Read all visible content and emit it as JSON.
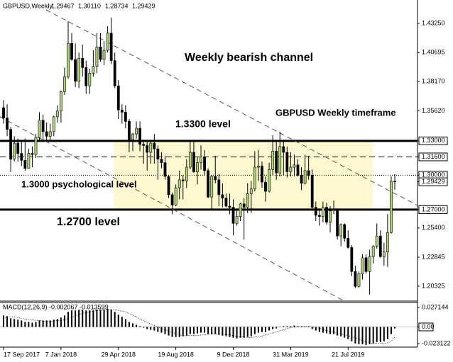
{
  "chart_data": {
    "type": "candlestick",
    "symbol": "GBPUSD,Weekly",
    "header_values": [
      "1.29467",
      "1.30110",
      "1.28734",
      "1.29429"
    ],
    "annotations": [
      "Weekly bearish channel",
      "GBPUSD Weekly timeframe",
      "1.3300 level",
      "1.3000 psychological level",
      "1.2700 level"
    ],
    "bull_color": "#a8d86e",
    "bear_color": "#000000",
    "categories": [
      "17 Sep 2017",
      null,
      null,
      null,
      null,
      null,
      null,
      null,
      null,
      null,
      null,
      null,
      null,
      null,
      null,
      null,
      "7 Jan 2018",
      null,
      null,
      null,
      null,
      null,
      null,
      null,
      null,
      null,
      null,
      null,
      null,
      null,
      null,
      null,
      "29 Apr 2018",
      null,
      null,
      null,
      null,
      null,
      null,
      null,
      null,
      null,
      null,
      null,
      null,
      null,
      null,
      null,
      "19 Aug 2018",
      null,
      null,
      null,
      null,
      null,
      null,
      null,
      null,
      null,
      null,
      null,
      null,
      null,
      null,
      null,
      "9 Dec 2018",
      null,
      null,
      null,
      null,
      null,
      null,
      null,
      null,
      null,
      null,
      null,
      null,
      null,
      null,
      null,
      "31 Mar 2019",
      null,
      null,
      null,
      null,
      null,
      null,
      null,
      null,
      null,
      null,
      null,
      null,
      null,
      null,
      null,
      "21 Jul 2019",
      null,
      null,
      null,
      null,
      null,
      null,
      null,
      null,
      null,
      null,
      null,
      null,
      null
    ],
    "ohlc": [
      [
        1.359,
        1.3657,
        1.345,
        1.35
      ],
      [
        1.35,
        1.362,
        1.334,
        1.34
      ],
      [
        1.34,
        1.342,
        1.3027,
        1.314
      ],
      [
        1.314,
        1.334,
        1.312,
        1.328
      ],
      [
        1.328,
        1.332,
        1.312,
        1.319
      ],
      [
        1.319,
        1.33,
        1.308,
        1.313
      ],
      [
        1.313,
        1.332,
        1.304,
        1.306
      ],
      [
        1.306,
        1.323,
        1.306,
        1.319
      ],
      [
        1.319,
        1.325,
        1.307,
        1.318
      ],
      [
        1.318,
        1.336,
        1.315,
        1.333
      ],
      [
        1.333,
        1.355,
        1.33,
        1.348
      ],
      [
        1.348,
        1.353,
        1.33,
        1.338
      ],
      [
        1.338,
        1.346,
        1.33,
        1.334
      ],
      [
        1.334,
        1.345,
        1.33,
        1.338
      ],
      [
        1.338,
        1.352,
        1.334,
        1.351
      ],
      [
        1.351,
        1.361,
        1.346,
        1.356
      ],
      [
        1.356,
        1.374,
        1.346,
        1.373
      ],
      [
        1.373,
        1.394,
        1.37,
        1.386
      ],
      [
        1.386,
        1.4345,
        1.384,
        1.415
      ],
      [
        1.415,
        1.424,
        1.4,
        1.401
      ],
      [
        1.401,
        1.415,
        1.377,
        1.382
      ],
      [
        1.382,
        1.407,
        1.376,
        1.402
      ],
      [
        1.402,
        1.414,
        1.386,
        1.394
      ],
      [
        1.394,
        1.4,
        1.371,
        1.378
      ],
      [
        1.378,
        1.393,
        1.371,
        1.389
      ],
      [
        1.389,
        1.409,
        1.386,
        1.395
      ],
      [
        1.395,
        1.424,
        1.389,
        1.412
      ],
      [
        1.412,
        1.424,
        1.399,
        1.401
      ],
      [
        1.401,
        1.417,
        1.396,
        1.409
      ],
      [
        1.409,
        1.43,
        1.407,
        1.424
      ],
      [
        1.424,
        1.4376,
        1.397,
        1.4
      ],
      [
        1.4,
        1.407,
        1.376,
        1.378
      ],
      [
        1.378,
        1.383,
        1.349,
        1.357
      ],
      [
        1.357,
        1.362,
        1.345,
        1.355
      ],
      [
        1.355,
        1.361,
        1.341,
        1.347
      ],
      [
        1.347,
        1.349,
        1.32,
        1.331
      ],
      [
        1.331,
        1.337,
        1.321,
        1.336
      ],
      [
        1.336,
        1.347,
        1.332,
        1.341
      ],
      [
        1.341,
        1.347,
        1.321,
        1.327
      ],
      [
        1.327,
        1.331,
        1.31,
        1.326
      ],
      [
        1.326,
        1.329,
        1.304,
        1.32
      ],
      [
        1.32,
        1.329,
        1.31,
        1.328
      ],
      [
        1.328,
        1.336,
        1.31,
        1.323
      ],
      [
        1.323,
        1.326,
        1.296,
        1.314
      ],
      [
        1.314,
        1.32,
        1.306,
        1.311
      ],
      [
        1.311,
        1.317,
        1.296,
        1.299
      ],
      [
        1.299,
        1.3,
        1.28,
        1.283
      ],
      [
        1.283,
        1.285,
        1.266,
        1.274
      ],
      [
        1.274,
        1.292,
        1.273,
        1.289
      ],
      [
        1.289,
        1.304,
        1.279,
        1.296
      ],
      [
        1.296,
        1.3,
        1.279,
        1.295
      ],
      [
        1.295,
        1.314,
        1.289,
        1.307
      ],
      [
        1.307,
        1.33,
        1.305,
        1.32
      ],
      [
        1.32,
        1.33,
        1.302,
        1.303
      ],
      [
        1.303,
        1.316,
        1.292,
        1.311
      ],
      [
        1.311,
        1.326,
        1.305,
        1.316
      ],
      [
        1.316,
        1.322,
        1.3,
        1.304
      ],
      [
        1.304,
        1.306,
        1.28,
        1.281
      ],
      [
        1.281,
        1.3,
        1.27,
        1.299
      ],
      [
        1.299,
        1.317,
        1.293,
        1.296
      ],
      [
        1.296,
        1.301,
        1.273,
        1.283
      ],
      [
        1.283,
        1.293,
        1.272,
        1.28
      ],
      [
        1.28,
        1.284,
        1.272,
        1.273
      ],
      [
        1.273,
        1.284,
        1.266,
        1.272
      ],
      [
        1.272,
        1.279,
        1.2477,
        1.258
      ],
      [
        1.258,
        1.27,
        1.256,
        1.264
      ],
      [
        1.264,
        1.276,
        1.26,
        1.275
      ],
      [
        1.275,
        1.28,
        1.2438,
        1.272
      ],
      [
        1.272,
        1.293,
        1.267,
        1.284
      ],
      [
        1.284,
        1.295,
        1.267,
        1.288
      ],
      [
        1.288,
        1.321,
        1.286,
        1.307
      ],
      [
        1.307,
        1.322,
        1.295,
        1.308
      ],
      [
        1.308,
        1.312,
        1.289,
        1.294
      ],
      [
        1.294,
        1.299,
        1.277,
        1.286
      ],
      [
        1.286,
        1.311,
        1.285,
        1.305
      ],
      [
        1.305,
        1.335,
        1.3,
        1.321
      ],
      [
        1.321,
        1.329,
        1.296,
        1.302
      ],
      [
        1.302,
        1.3381,
        1.299,
        1.325
      ],
      [
        1.325,
        1.33,
        1.3,
        1.32
      ],
      [
        1.32,
        1.325,
        1.298,
        1.303
      ],
      [
        1.303,
        1.32,
        1.299,
        1.307
      ],
      [
        1.307,
        1.318,
        1.299,
        1.309
      ],
      [
        1.309,
        1.314,
        1.299,
        1.3
      ],
      [
        1.3,
        1.307,
        1.287,
        1.293
      ],
      [
        1.293,
        1.318,
        1.292,
        1.304
      ],
      [
        1.304,
        1.317,
        1.296,
        1.3
      ],
      [
        1.3,
        1.305,
        1.27,
        1.272
      ],
      [
        1.272,
        1.277,
        1.26,
        1.265
      ],
      [
        1.265,
        1.271,
        1.256,
        1.264
      ],
      [
        1.264,
        1.277,
        1.259,
        1.272
      ],
      [
        1.272,
        1.276,
        1.257,
        1.259
      ],
      [
        1.259,
        1.273,
        1.25,
        1.269
      ],
      [
        1.269,
        1.278,
        1.266,
        1.27
      ],
      [
        1.27,
        1.271,
        1.244,
        1.247
      ],
      [
        1.247,
        1.258,
        1.238,
        1.257
      ],
      [
        1.257,
        1.258,
        1.242,
        1.245
      ],
      [
        1.245,
        1.252,
        1.236,
        1.237
      ],
      [
        1.237,
        1.239,
        1.212,
        1.216
      ],
      [
        1.216,
        1.221,
        1.2015,
        1.203
      ],
      [
        1.203,
        1.216,
        1.202,
        1.214
      ],
      [
        1.214,
        1.231,
        1.209,
        1.228
      ],
      [
        1.228,
        1.231,
        1.214,
        1.216
      ],
      [
        1.216,
        1.235,
        1.1959,
        1.229
      ],
      [
        1.229,
        1.239,
        1.223,
        1.238
      ],
      [
        1.238,
        1.258,
        1.236,
        1.247
      ],
      [
        1.247,
        1.252,
        1.228,
        1.229
      ],
      [
        1.229,
        1.241,
        1.221,
        1.233
      ],
      [
        1.233,
        1.266,
        1.22,
        1.25
      ],
      [
        1.25,
        1.299,
        1.249,
        1.2947
      ],
      [
        1.29467,
        1.3011,
        1.28734,
        1.29429
      ]
    ],
    "ylim": [
      1.1902,
      1.4529
    ],
    "yticks": [
      {
        "value": 1.4325,
        "label": "1.43250"
      },
      {
        "value": 1.40695,
        "label": "1.40695"
      },
      {
        "value": 1.3817,
        "label": "1.38170"
      },
      {
        "value": 1.3562,
        "label": "1.35620"
      },
      {
        "value": 1.33,
        "label": "1.33000",
        "boxed": true,
        "line": "solid"
      },
      {
        "value": 1.316,
        "label": "1.31600",
        "boxed": true,
        "line": "dashed"
      },
      {
        "value": 1.3,
        "label": "1.30000",
        "boxed": true,
        "line": "dotted"
      },
      {
        "value": 1.29429,
        "label": "1.29429",
        "boxed": true
      },
      {
        "value": 1.27,
        "label": "1.27000",
        "boxed": true,
        "line": "solid"
      },
      {
        "value": 1.254,
        "label": "1.25400"
      },
      {
        "value": 1.22845,
        "label": "1.22845"
      },
      {
        "value": 1.20325,
        "label": "1.20325"
      }
    ],
    "macd": {
      "label": "MACD(12,26,9) -0.002067 -0.013599",
      "ylim": [
        -0.0281,
        0.034
      ],
      "yticks": [
        0.027144,
        {
          "value": 0,
          "label": "0.00"
        },
        -0.023122
      ],
      "histogram": [
        0.016,
        0.015,
        0.012,
        0.011,
        0.01,
        0.009,
        0.007,
        0.007,
        0.006,
        0.007,
        0.009,
        0.009,
        0.009,
        0.009,
        0.01,
        0.011,
        0.013,
        0.016,
        0.021,
        0.023,
        0.023,
        0.024,
        0.024,
        0.023,
        0.023,
        0.023,
        0.024,
        0.024,
        0.024,
        0.025,
        0.024,
        0.021,
        0.017,
        0.014,
        0.011,
        0.007,
        0.005,
        0.003,
        0.001,
        -0.001,
        -0.003,
        -0.004,
        -0.005,
        -0.007,
        -0.008,
        -0.01,
        -0.012,
        -0.014,
        -0.014,
        -0.014,
        -0.013,
        -0.012,
        -0.01,
        -0.01,
        -0.009,
        -0.008,
        -0.008,
        -0.01,
        -0.01,
        -0.01,
        -0.011,
        -0.012,
        -0.013,
        -0.014,
        -0.015,
        -0.016,
        -0.015,
        -0.015,
        -0.014,
        -0.013,
        -0.01,
        -0.008,
        -0.007,
        -0.007,
        -0.005,
        -0.003,
        -0.002,
        0.0,
        0.001,
        0.001,
        0.001,
        0.002,
        0.001,
        0.0,
        0.0,
        0.0,
        -0.003,
        -0.005,
        -0.007,
        -0.008,
        -0.009,
        -0.01,
        -0.01,
        -0.012,
        -0.013,
        -0.015,
        -0.017,
        -0.02,
        -0.023,
        -0.024,
        -0.024,
        -0.025,
        -0.024,
        -0.023,
        -0.021,
        -0.021,
        -0.02,
        -0.017,
        -0.01,
        -0.002067
      ],
      "signal": [
        0.012,
        0.013,
        0.014,
        0.014,
        0.013,
        0.012,
        0.011,
        0.01,
        0.01,
        0.009,
        0.009,
        0.008,
        0.008,
        0.008,
        0.008,
        0.009,
        0.009,
        0.01,
        0.012,
        0.013,
        0.015,
        0.017,
        0.019,
        0.02,
        0.021,
        0.022,
        0.023,
        0.023,
        0.024,
        0.024,
        0.024,
        0.024,
        0.023,
        0.022,
        0.021,
        0.019,
        0.016,
        0.014,
        0.011,
        0.009,
        0.006,
        0.004,
        0.002,
        0.0,
        -0.002,
        -0.004,
        -0.006,
        -0.008,
        -0.009,
        -0.011,
        -0.012,
        -0.012,
        -0.012,
        -0.012,
        -0.012,
        -0.011,
        -0.011,
        -0.01,
        -0.01,
        -0.01,
        -0.01,
        -0.01,
        -0.011,
        -0.011,
        -0.012,
        -0.013,
        -0.014,
        -0.014,
        -0.015,
        -0.015,
        -0.014,
        -0.014,
        -0.013,
        -0.011,
        -0.01,
        -0.008,
        -0.007,
        -0.005,
        -0.004,
        -0.002,
        -0.001,
        0.0,
        0.0,
        0.001,
        0.001,
        0.001,
        0.0,
        -0.001,
        -0.002,
        -0.003,
        -0.005,
        -0.006,
        -0.007,
        -0.009,
        -0.01,
        -0.011,
        -0.012,
        -0.014,
        -0.015,
        -0.017,
        -0.019,
        -0.02,
        -0.022,
        -0.023,
        -0.023,
        -0.023,
        -0.023,
        -0.022,
        -0.02,
        -0.013599
      ]
    }
  }
}
